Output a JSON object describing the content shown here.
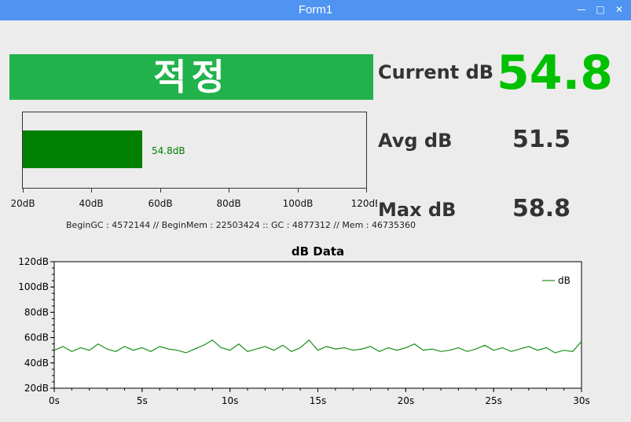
{
  "window": {
    "title": "Form1",
    "minimize_glyph": "—",
    "maximize_glyph": "□",
    "close_glyph": "✕"
  },
  "status": {
    "text": "적정",
    "color": "#22b24c"
  },
  "level_bar": {
    "value": 54.8,
    "label": "54.8dB",
    "min": 20,
    "max": 120,
    "ticks": [
      "20dB",
      "40dB",
      "60dB",
      "80dB",
      "100dB",
      "120dB"
    ],
    "color": "#008000"
  },
  "mem_info": "BeginGC : 4572144  //  BeginMem : 22503424  ::  GC : 4877312  //  Mem : 46735360",
  "stats": {
    "current": {
      "label": "Current dB",
      "value": "54.8",
      "color": "#00c000"
    },
    "avg": {
      "label": "Avg dB",
      "value": "51.5"
    },
    "max": {
      "label": "Max dB",
      "value": "58.8"
    }
  },
  "chart_data": {
    "type": "line",
    "title": "dB Data",
    "xlabel": "",
    "ylabel": "",
    "xlim": [
      0,
      30
    ],
    "ylim": [
      20,
      120
    ],
    "x_ticks": [
      "0s",
      "5s",
      "10s",
      "15s",
      "20s",
      "25s",
      "30s"
    ],
    "y_ticks": [
      "20dB",
      "40dB",
      "60dB",
      "80dB",
      "100dB",
      "120dB"
    ],
    "legend_position": "top-right",
    "grid": false,
    "series": [
      {
        "name": "dB",
        "color": "#1a8f1a",
        "x": [
          0,
          0.5,
          1,
          1.5,
          2,
          2.5,
          3,
          3.5,
          4,
          4.5,
          5,
          5.5,
          6,
          6.5,
          7,
          7.5,
          8,
          8.5,
          9,
          9.5,
          10,
          10.5,
          11,
          11.5,
          12,
          12.5,
          13,
          13.5,
          14,
          14.5,
          15,
          15.5,
          16,
          16.5,
          17,
          17.5,
          18,
          18.5,
          19,
          19.5,
          20,
          20.5,
          21,
          21.5,
          22,
          22.5,
          23,
          23.5,
          24,
          24.5,
          25,
          25.5,
          26,
          26.5,
          27,
          27.5,
          28,
          28.5,
          29,
          29.5,
          30
        ],
        "values": [
          50,
          53,
          49,
          52,
          50,
          55,
          51,
          49,
          53,
          50,
          52,
          49,
          53,
          51,
          50,
          48,
          51,
          54,
          58,
          52,
          50,
          55,
          49,
          51,
          53,
          50,
          54,
          49,
          52,
          58,
          50,
          53,
          51,
          52,
          50,
          51,
          53,
          49,
          52,
          50,
          52,
          55,
          50,
          51,
          49,
          50,
          52,
          49,
          51,
          54,
          50,
          52,
          49,
          51,
          53,
          50,
          52,
          48,
          50,
          49,
          57
        ]
      }
    ]
  }
}
